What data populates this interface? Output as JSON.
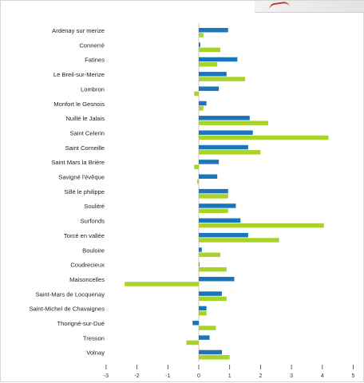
{
  "chart_data": {
    "type": "bar",
    "orientation": "horizontal",
    "title": "",
    "xlabel": "",
    "ylabel": "",
    "xlim": [
      -3,
      5
    ],
    "xticks": [
      -3,
      -2,
      -1,
      0,
      1,
      2,
      3,
      4,
      5
    ],
    "grid": false,
    "legend": "none",
    "categories": [
      "Ardenay sur merize",
      "Connerré",
      "Fatines",
      "Le Breil-sur-Merize",
      "Lombron",
      "Monfort le Gesnois",
      "Nuillé le Jalais",
      "Saint Celerin",
      "Saint Corneille",
      "Saint Mars la Brière",
      "Savigné l'évêque",
      "Sillé le philippe",
      "Soulitré",
      "Surfonds",
      "Torcé en vallée",
      "Bouloire",
      "Coudrecieux",
      "Maisoncelles",
      "Saint-Mars de Locquenay",
      "Saint-Michel de Chavaignes",
      "Thorigné-sur-Dué",
      "Tresson",
      "Volnay"
    ],
    "series": [
      {
        "color": "#1b75bb",
        "values": [
          0.95,
          0.05,
          1.25,
          0.9,
          0.65,
          0.25,
          1.65,
          1.75,
          1.6,
          0.65,
          0.6,
          0.95,
          1.2,
          1.35,
          1.6,
          0.1,
          0.02,
          1.15,
          0.75,
          0.25,
          -0.2,
          0.35,
          0.75
        ]
      },
      {
        "color": "#a8d42a",
        "values": [
          0.15,
          0.7,
          0.6,
          1.5,
          -0.15,
          0.15,
          2.25,
          4.2,
          2.0,
          -0.15,
          -0.05,
          0.95,
          0.95,
          4.05,
          2.6,
          0.7,
          0.9,
          -2.4,
          0.9,
          0.25,
          0.55,
          -0.4,
          1.0
        ]
      }
    ]
  }
}
